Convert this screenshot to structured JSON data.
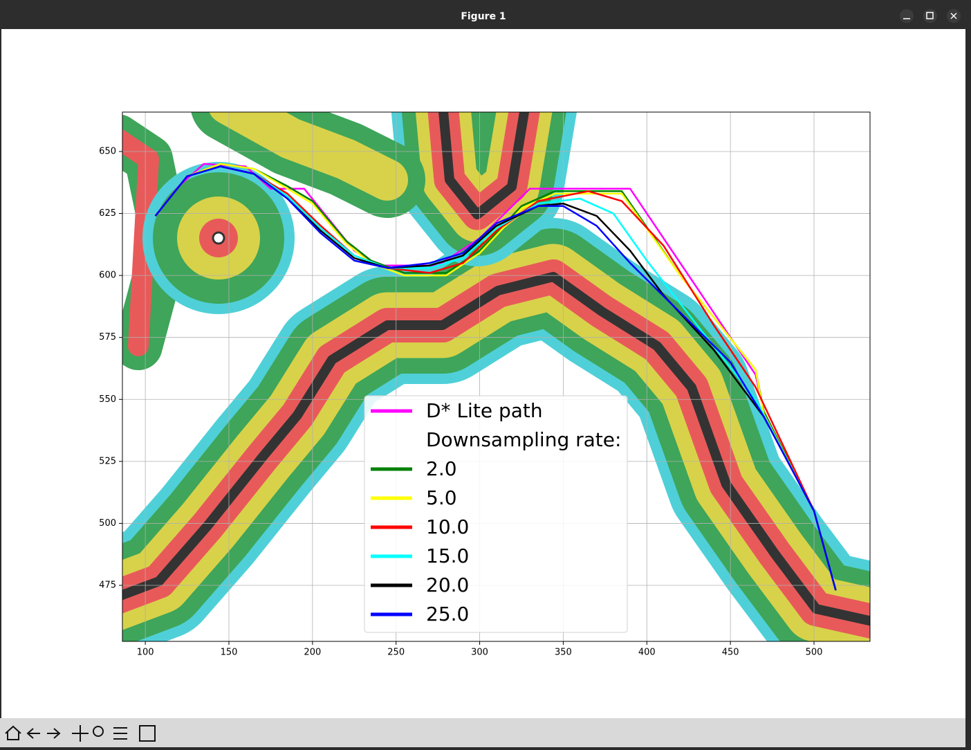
{
  "window_title": "Figure 1",
  "chart_data": {
    "type": "line",
    "xlim": [
      86.3,
      533.5
    ],
    "ylim": [
      452.4,
      665.9
    ],
    "xticks": [
      100,
      150,
      200,
      250,
      300,
      350,
      400,
      450,
      500
    ],
    "yticks": [
      475,
      500,
      525,
      550,
      575,
      600,
      625,
      650
    ],
    "grid": true,
    "legend_title": "Downsampling rate:",
    "series": [
      {
        "name": "D* Lite path",
        "color": "#ff00ff",
        "x": [
          106,
          120,
          135,
          160,
          175,
          195,
          225,
          240,
          275,
          300,
          330,
          390,
          465,
          470,
          500,
          513
        ],
        "values": [
          624,
          636,
          645,
          644,
          635,
          635,
          610,
          604,
          604,
          615,
          635,
          635,
          560,
          545,
          505,
          473
        ]
      },
      {
        "name": "2.0",
        "color": "#008000",
        "x": [
          106,
          125,
          145,
          165,
          185,
          200,
          220,
          235,
          255,
          280,
          300,
          325,
          345,
          385,
          420,
          465,
          470,
          500,
          513
        ],
        "values": [
          624,
          640,
          645,
          643,
          636,
          630,
          614,
          606,
          601,
          601,
          610,
          628,
          634,
          634,
          600,
          562,
          545,
          505,
          473
        ]
      },
      {
        "name": "5.0",
        "color": "#ffff00",
        "x": [
          106,
          125,
          145,
          165,
          185,
          200,
          220,
          235,
          255,
          280,
          300,
          325,
          345,
          385,
          420,
          465,
          470,
          500,
          513
        ],
        "values": [
          624,
          640,
          645,
          643,
          635,
          629,
          613,
          605,
          600,
          600,
          609,
          627,
          633,
          633,
          600,
          562,
          544,
          505,
          473
        ]
      },
      {
        "name": "10.0",
        "color": "#ff0000",
        "x": [
          106,
          125,
          145,
          165,
          185,
          205,
          225,
          245,
          270,
          290,
          310,
          335,
          365,
          385,
          410,
          440,
          465,
          500,
          513
        ],
        "values": [
          624,
          640,
          644,
          641,
          633,
          620,
          608,
          603,
          601,
          605,
          618,
          630,
          634,
          630,
          612,
          580,
          555,
          505,
          473
        ]
      },
      {
        "name": "15.0",
        "color": "#00ffff",
        "x": [
          106,
          125,
          145,
          165,
          185,
          205,
          225,
          245,
          270,
          290,
          310,
          335,
          360,
          380,
          400,
          430,
          465,
          500,
          513
        ],
        "values": [
          624,
          640,
          644,
          641,
          632,
          619,
          608,
          603,
          603,
          607,
          619,
          629,
          631,
          625,
          606,
          580,
          550,
          505,
          473
        ]
      },
      {
        "name": "20.0",
        "color": "#000000",
        "x": [
          106,
          125,
          145,
          165,
          185,
          205,
          225,
          245,
          270,
          290,
          310,
          335,
          350,
          370,
          390,
          410,
          440,
          470,
          500,
          513
        ],
        "values": [
          624,
          640,
          644,
          641,
          631,
          618,
          607,
          603,
          604,
          608,
          620,
          628,
          629,
          624,
          610,
          592,
          570,
          543,
          505,
          473
        ]
      },
      {
        "name": "25.0",
        "color": "#0000ff",
        "x": [
          106,
          125,
          145,
          165,
          185,
          205,
          225,
          245,
          270,
          290,
          310,
          335,
          350,
          370,
          390,
          420,
          450,
          470,
          500,
          513
        ],
        "values": [
          624,
          640,
          644,
          641,
          631,
          617,
          606,
          603,
          605,
          609,
          621,
          628,
          628,
          620,
          605,
          585,
          565,
          543,
          505,
          473
        ]
      }
    ]
  }
}
